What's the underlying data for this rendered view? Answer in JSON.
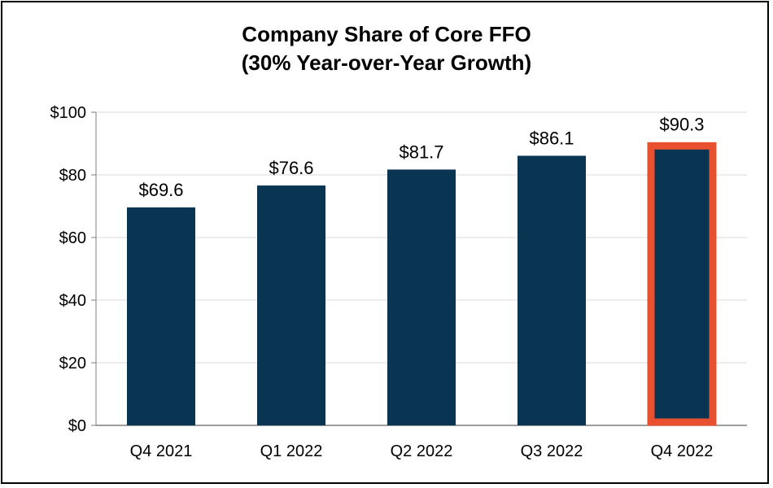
{
  "chart_data": {
    "type": "bar",
    "title": "Company Share of Core FFO",
    "subtitle": "(30% Year-over-Year Growth)",
    "categories": [
      "Q4 2021",
      "Q1 2022",
      "Q2 2022",
      "Q3 2022",
      "Q4 2022"
    ],
    "values": [
      69.6,
      76.6,
      81.7,
      86.1,
      90.3
    ],
    "value_labels": [
      "$69.6",
      "$76.6",
      "$81.7",
      "$86.1",
      "$90.3"
    ],
    "ylim": [
      0,
      100
    ],
    "yticks": [
      0,
      20,
      40,
      60,
      80,
      100
    ],
    "ytick_labels": [
      "$0",
      "$20",
      "$40",
      "$60",
      "$80",
      "$100"
    ],
    "grid": true,
    "highlight_index": 4,
    "colors": {
      "bar": "#0a3552",
      "highlight_border": "#e8502f",
      "grid": "#d9d9d9",
      "axis": "#7f7f7f"
    }
  }
}
